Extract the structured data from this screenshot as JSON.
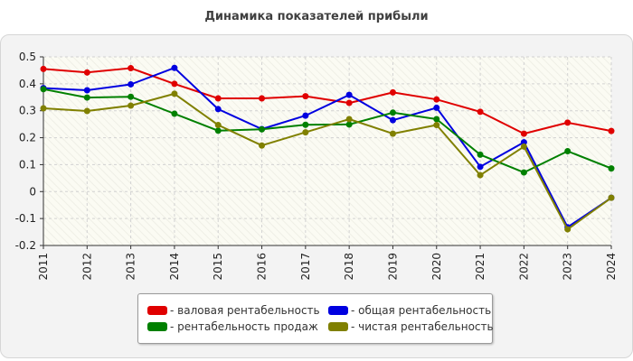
{
  "chart_data": {
    "type": "line",
    "title": "Динамика показателей прибыли",
    "x": [
      "2011",
      "2012",
      "2013",
      "2014",
      "2015",
      "2016",
      "2017",
      "2018",
      "2019",
      "2020",
      "2021",
      "2022",
      "2023",
      "2024"
    ],
    "ylim": [
      -0.2,
      0.5
    ],
    "yticks": [
      "0.5",
      "0.4",
      "0.3",
      "0.2",
      "0.1",
      "0",
      "-0.1",
      "-0.2"
    ],
    "ytick_values": [
      0.5,
      0.4,
      0.3,
      0.2,
      0.1,
      0,
      -0.1,
      -0.2
    ],
    "grid": true,
    "legend_position": "bottom",
    "series": [
      {
        "name": "- валовая рентабельность",
        "color": "#e00000",
        "values": [
          0.455,
          0.442,
          0.458,
          0.4,
          0.346,
          0.346,
          0.354,
          0.329,
          0.368,
          0.342,
          0.296,
          0.215,
          0.256,
          0.225
        ]
      },
      {
        "name": "- общая рентабельность",
        "color": "#0000e0",
        "values": [
          0.384,
          0.376,
          0.398,
          0.459,
          0.306,
          0.232,
          0.282,
          0.359,
          0.265,
          0.311,
          0.092,
          0.183,
          -0.132,
          -0.023
        ]
      },
      {
        "name": "- рентабельность продаж",
        "color": "#008000",
        "values": [
          0.38,
          0.349,
          0.352,
          0.289,
          0.226,
          0.231,
          0.248,
          0.249,
          0.293,
          0.269,
          0.137,
          0.071,
          0.15,
          0.086
        ]
      },
      {
        "name": "- чистая рентабельность",
        "color": "#808000",
        "values": [
          0.309,
          0.299,
          0.319,
          0.363,
          0.247,
          0.171,
          0.22,
          0.269,
          0.215,
          0.247,
          0.061,
          0.167,
          -0.14,
          -0.023
        ]
      }
    ]
  }
}
